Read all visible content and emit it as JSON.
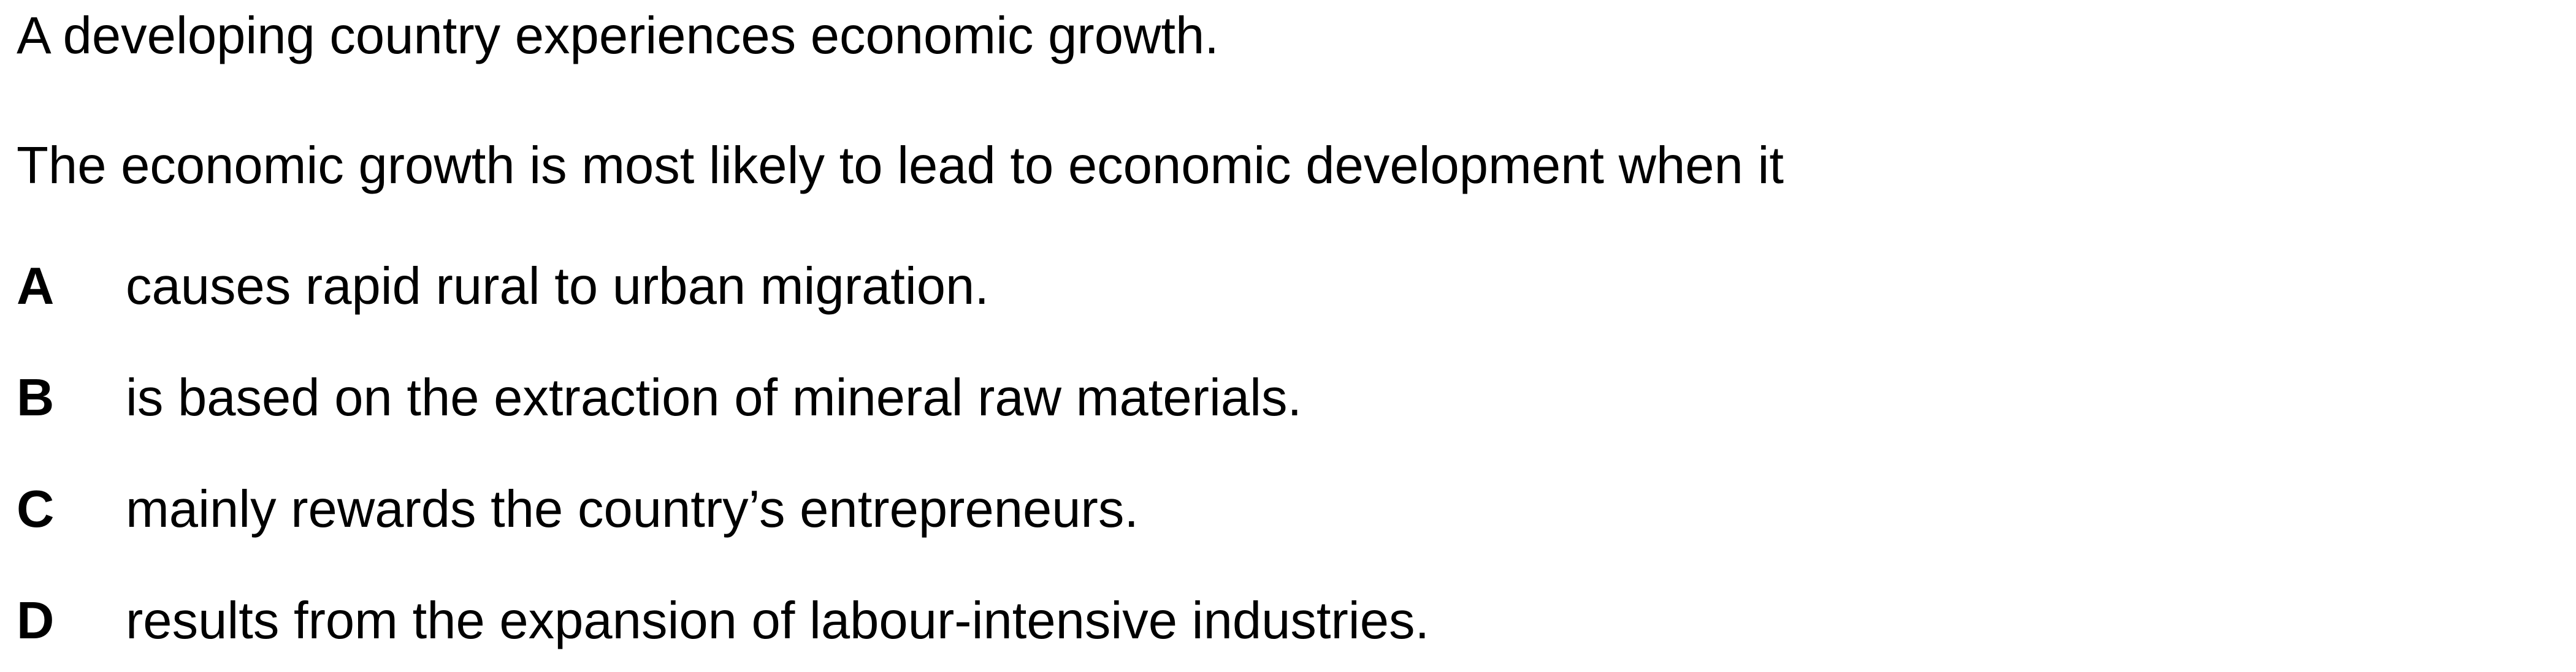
{
  "question": {
    "stem_line_1": "A developing country experiences economic growth.",
    "stem_line_2": "The economic growth is most likely to lead to economic development when it",
    "options": [
      {
        "letter": "A",
        "text": "causes rapid rural to urban migration."
      },
      {
        "letter": "B",
        "text": "is based on the extraction of mineral raw materials."
      },
      {
        "letter": "C",
        "text": "mainly rewards the country’s entrepreneurs."
      },
      {
        "letter": "D",
        "text": "results from the expansion of labour-intensive industries."
      }
    ]
  }
}
